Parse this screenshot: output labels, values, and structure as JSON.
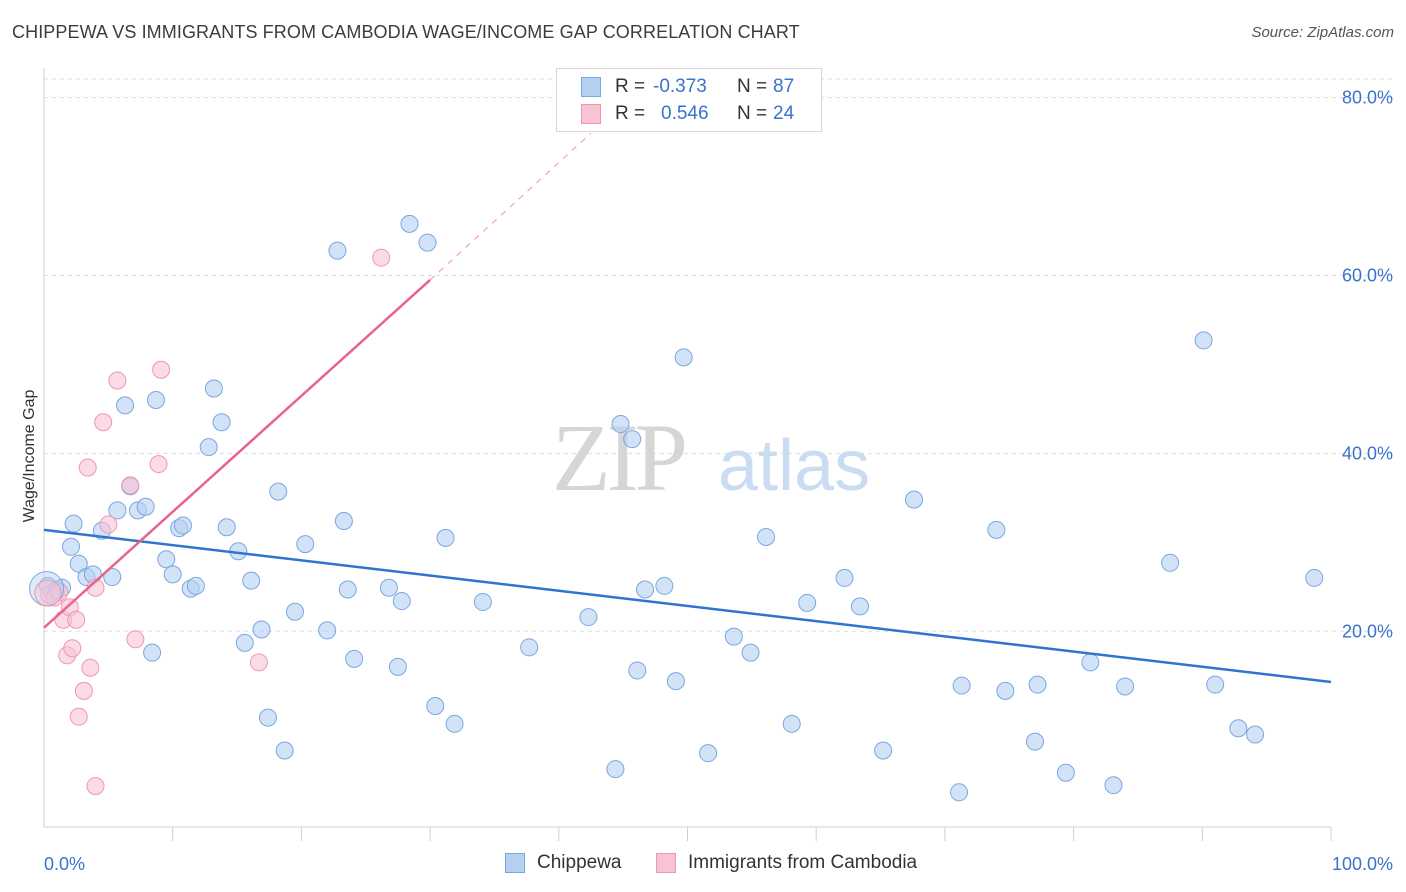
{
  "header": {
    "title": "CHIPPEWA VS IMMIGRANTS FROM CAMBODIA WAGE/INCOME GAP CORRELATION CHART",
    "source": "Source: ZipAtlas.com"
  },
  "legend": {
    "rows": [
      {
        "r_label": "R =",
        "r_value": "-0.373",
        "n_label": "N =",
        "n_value": "87"
      },
      {
        "r_label": "R =",
        "r_value": "0.546",
        "n_label": "N =",
        "n_value": "24"
      }
    ]
  },
  "colors": {
    "chippewa_fill": "#b6d0f2",
    "chippewa_stroke": "#7aa7e0",
    "chippewa_line": "#2f74d0",
    "cambodia_fill": "#f8c3d3",
    "cambodia_stroke": "#ee97b2",
    "cambodia_line": "#e8638d",
    "axis_label": "#3a72cc",
    "grid": "#dddddd"
  },
  "watermark": {
    "zip": "ZIP",
    "atlas": "atlas"
  },
  "chart_data": {
    "type": "scatter",
    "title": "CHIPPEWA VS IMMIGRANTS FROM CAMBODIA WAGE/INCOME GAP CORRELATION CHART",
    "xlabel": "",
    "ylabel": "Wage/Income Gap",
    "xlim": [
      0,
      100
    ],
    "ylim": [
      -2,
      84
    ],
    "x_tick_labels": [
      "0.0%",
      "100.0%"
    ],
    "y_ticks": [
      20,
      40,
      60,
      80
    ],
    "y_tick_labels": [
      "20.0%",
      "40.0%",
      "60.0%",
      "80.0%"
    ],
    "grid": true,
    "legend_position": "top-center",
    "series": [
      {
        "name": "Chippewa",
        "points": [
          [
            0.3,
            25.1
          ],
          [
            1,
            24.7
          ],
          [
            1.4,
            24.9
          ],
          [
            2.1,
            29.5
          ],
          [
            2.3,
            32.1
          ],
          [
            2.7,
            27.6
          ],
          [
            3.3,
            26.1
          ],
          [
            3.8,
            26.4
          ],
          [
            4.5,
            31.3
          ],
          [
            5.3,
            26.1
          ],
          [
            5.7,
            33.6
          ],
          [
            6.3,
            45.4
          ],
          [
            6.7,
            36.3
          ],
          [
            7.3,
            33.6
          ],
          [
            7.9,
            34
          ],
          [
            8.4,
            17.6
          ],
          [
            8.7,
            46
          ],
          [
            9.5,
            28.1
          ],
          [
            10,
            26.4
          ],
          [
            10.5,
            31.6
          ],
          [
            10.8,
            31.9
          ],
          [
            11.4,
            24.8
          ],
          [
            11.8,
            25.1
          ],
          [
            12.8,
            40.7
          ],
          [
            13.2,
            47.3
          ],
          [
            13.8,
            43.5
          ],
          [
            14.2,
            31.7
          ],
          [
            15.1,
            29
          ],
          [
            15.6,
            18.7
          ],
          [
            16.1,
            25.7
          ],
          [
            16.9,
            20.2
          ],
          [
            17.4,
            10.3
          ],
          [
            18.2,
            35.7
          ],
          [
            18.7,
            6.6
          ],
          [
            19.5,
            22.2
          ],
          [
            20.3,
            29.8
          ],
          [
            22,
            20.1
          ],
          [
            22.8,
            62.8
          ],
          [
            23.3,
            32.4
          ],
          [
            23.6,
            24.7
          ],
          [
            24.1,
            16.9
          ],
          [
            26.8,
            24.9
          ],
          [
            27.5,
            16
          ],
          [
            27.8,
            23.4
          ],
          [
            28.4,
            65.8
          ],
          [
            29.8,
            63.7
          ],
          [
            30.4,
            11.6
          ],
          [
            31.2,
            30.5
          ],
          [
            31.9,
            9.6
          ],
          [
            34.1,
            23.3
          ],
          [
            37.7,
            18.2
          ],
          [
            42.3,
            21.6
          ],
          [
            44.4,
            4.5
          ],
          [
            44.8,
            43.3
          ],
          [
            45.7,
            41.6
          ],
          [
            46.1,
            15.6
          ],
          [
            46.7,
            24.7
          ],
          [
            48.2,
            25.1
          ],
          [
            49.1,
            14.4
          ],
          [
            49.7,
            50.8
          ],
          [
            51.6,
            6.3
          ],
          [
            53.6,
            19.4
          ],
          [
            54.9,
            17.6
          ],
          [
            56.1,
            30.6
          ],
          [
            58.1,
            9.6
          ],
          [
            59.3,
            23.2
          ],
          [
            62.2,
            26
          ],
          [
            63.4,
            22.8
          ],
          [
            65.2,
            6.6
          ],
          [
            67.6,
            34.8
          ],
          [
            71.1,
            1.9
          ],
          [
            71.3,
            13.9
          ],
          [
            74,
            31.4
          ],
          [
            74.7,
            13.3
          ],
          [
            77,
            7.6
          ],
          [
            77.2,
            14
          ],
          [
            79.4,
            4.1
          ],
          [
            81.3,
            16.5
          ],
          [
            83.1,
            2.7
          ],
          [
            84,
            13.8
          ],
          [
            87.5,
            27.7
          ],
          [
            90.1,
            52.7
          ],
          [
            91,
            14
          ],
          [
            92.8,
            9.1
          ],
          [
            94.1,
            8.4
          ],
          [
            98.7,
            26
          ]
        ]
      },
      {
        "name": "Immigrants from Cambodia",
        "points": [
          [
            0.4,
            24.1
          ],
          [
            0.8,
            23.8
          ],
          [
            1.2,
            24.4
          ],
          [
            1.5,
            21.3
          ],
          [
            1.8,
            17.3
          ],
          [
            2,
            22.7
          ],
          [
            2.2,
            18.1
          ],
          [
            2.5,
            21.3
          ],
          [
            2.7,
            10.4
          ],
          [
            3.1,
            13.3
          ],
          [
            3.4,
            38.4
          ],
          [
            3.6,
            15.9
          ],
          [
            4,
            2.6
          ],
          [
            4,
            24.9
          ],
          [
            4.6,
            43.5
          ],
          [
            5,
            32
          ],
          [
            5.7,
            48.2
          ],
          [
            6.7,
            36.4
          ],
          [
            7.1,
            19.1
          ],
          [
            8.9,
            38.8
          ],
          [
            9.1,
            49.4
          ],
          [
            16.7,
            16.5
          ],
          [
            26.2,
            62
          ]
        ]
      }
    ],
    "trend_lines": [
      {
        "series": "Chippewa",
        "from": [
          0,
          31.4
        ],
        "to": [
          100,
          14.3
        ]
      },
      {
        "series": "Immigrants from Cambodia",
        "from": [
          0,
          20.4
        ],
        "to": [
          30,
          59.5
        ],
        "dashed_to": [
          42.5,
          76
        ]
      }
    ]
  },
  "bottom_legend": [
    {
      "label": "Chippewa"
    },
    {
      "label": "Immigrants from Cambodia"
    }
  ]
}
